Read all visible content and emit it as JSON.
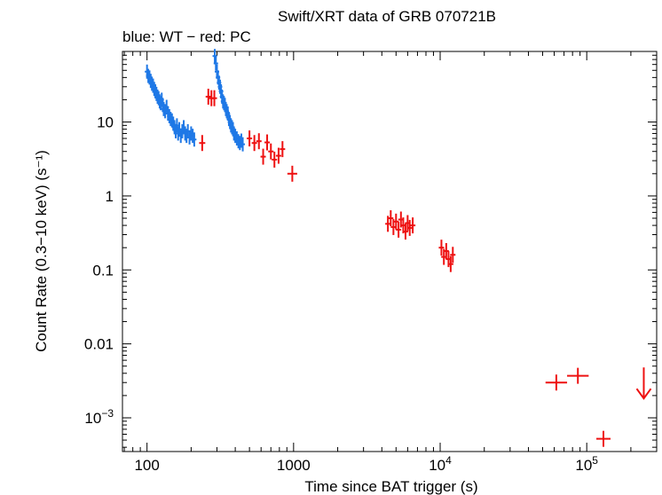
{
  "chart_data": {
    "type": "scatter",
    "title": "Swift/XRT data of GRB 070721B",
    "subtitle": "blue: WT − red: PC",
    "xlabel": "Time since BAT trigger (s)",
    "ylabel": "Count Rate (0.3−10 keV) (s⁻¹)",
    "x_scale": "log",
    "y_scale": "log",
    "xlim": [
      68,
      300000
    ],
    "ylim": [
      0.00035,
      90
    ],
    "x_ticks": [
      {
        "value": 100,
        "label": "100"
      },
      {
        "value": 1000,
        "label": "1000"
      },
      {
        "value": 10000,
        "base": "10",
        "exp": "4"
      },
      {
        "value": 100000,
        "base": "10",
        "exp": "5"
      }
    ],
    "y_ticks": [
      {
        "value": 0.001,
        "base": "10",
        "exp": "−3"
      },
      {
        "value": 0.01,
        "label": "0.01"
      },
      {
        "value": 0.1,
        "label": "0.1"
      },
      {
        "value": 1,
        "label": "1"
      },
      {
        "value": 10,
        "label": "10"
      }
    ],
    "series": [
      {
        "color": "#1f78e6",
        "points": [
          [
            100,
            48
          ],
          [
            102,
            42
          ],
          [
            104,
            40
          ],
          [
            106,
            36
          ],
          [
            108,
            33
          ],
          [
            110,
            31
          ],
          [
            112,
            28
          ],
          [
            114,
            26
          ],
          [
            116,
            24
          ],
          [
            118,
            22
          ],
          [
            120,
            21
          ],
          [
            122,
            19
          ],
          [
            124,
            18
          ],
          [
            126,
            20
          ],
          [
            128,
            17
          ],
          [
            130,
            15
          ],
          [
            133,
            14
          ],
          [
            136,
            16
          ],
          [
            139,
            13
          ],
          [
            142,
            12
          ],
          [
            145,
            11
          ],
          [
            148,
            10.5
          ],
          [
            151,
            9.5
          ],
          [
            154,
            8.5
          ],
          [
            157,
            7.5
          ],
          [
            160,
            9
          ],
          [
            163,
            7
          ],
          [
            166,
            8
          ],
          [
            170,
            6.5
          ],
          [
            174,
            7.5
          ],
          [
            178,
            8.5
          ],
          [
            182,
            7
          ],
          [
            186,
            6.5
          ],
          [
            190,
            7.5
          ],
          [
            195,
            6.2
          ],
          [
            200,
            7
          ],
          [
            205,
            6.5
          ],
          [
            210,
            5.8
          ],
          [
            290,
            78
          ],
          [
            295,
            62
          ],
          [
            300,
            48
          ],
          [
            305,
            40
          ],
          [
            310,
            34
          ],
          [
            315,
            30
          ],
          [
            320,
            26
          ],
          [
            325,
            22
          ],
          [
            330,
            19
          ],
          [
            335,
            18
          ],
          [
            340,
            17
          ],
          [
            345,
            15
          ],
          [
            350,
            14
          ],
          [
            356,
            13
          ],
          [
            362,
            11
          ],
          [
            368,
            10
          ],
          [
            374,
            9
          ],
          [
            380,
            8.5
          ],
          [
            386,
            8
          ],
          [
            392,
            7
          ],
          [
            400,
            6.5
          ],
          [
            410,
            6
          ],
          [
            420,
            5.5
          ],
          [
            430,
            5.2
          ],
          [
            440,
            5.6
          ],
          [
            450,
            5
          ]
        ]
      },
      {
        "color": "#ee1111",
        "points": [
          [
            238,
            5.2
          ],
          [
            262,
            22
          ],
          [
            275,
            21
          ],
          [
            288,
            21
          ],
          [
            500,
            6
          ],
          [
            540,
            5.2
          ],
          [
            580,
            5.5
          ],
          [
            620,
            3.4
          ],
          [
            660,
            5.3
          ],
          [
            700,
            4
          ],
          [
            740,
            3.1
          ],
          [
            790,
            3.5
          ],
          [
            840,
            4.3
          ],
          [
            980,
            2
          ],
          [
            4400,
            0.42
          ],
          [
            4600,
            0.5
          ],
          [
            4800,
            0.38
          ],
          [
            5000,
            0.45
          ],
          [
            5200,
            0.35
          ],
          [
            5400,
            0.48
          ],
          [
            5600,
            0.4
          ],
          [
            5800,
            0.33
          ],
          [
            6000,
            0.43
          ],
          [
            6200,
            0.37
          ],
          [
            6500,
            0.4
          ],
          [
            10200,
            0.2
          ],
          [
            10600,
            0.15
          ],
          [
            11000,
            0.18
          ],
          [
            11400,
            0.14
          ],
          [
            11800,
            0.12
          ],
          [
            12200,
            0.16
          ],
          [
            62000,
            0.003
          ],
          [
            87000,
            0.0037
          ],
          [
            130000,
            0.00052
          ]
        ]
      }
    ],
    "upper_limit": {
      "x": 245000,
      "y": 0.0048,
      "color": "#ee1111"
    }
  }
}
